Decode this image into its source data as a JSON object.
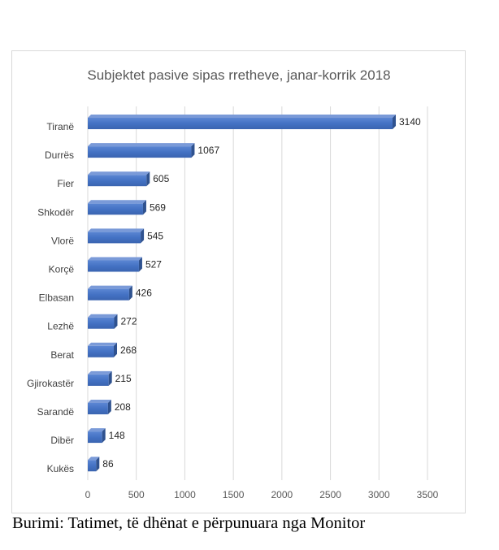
{
  "chart_data": {
    "type": "bar",
    "orientation": "horizontal",
    "title": "Subjektet pasive sipas rretheve, janar-korrik 2018",
    "categories": [
      "Tiranë",
      "Durrës",
      "Fier",
      "Shkodër",
      "Vlorë",
      "Korçë",
      "Elbasan",
      "Lezhë",
      "Berat",
      "Gjirokastër",
      "Sarandë",
      "Dibër",
      "Kukës"
    ],
    "values": [
      3140,
      1067,
      605,
      569,
      545,
      527,
      426,
      272,
      268,
      215,
      208,
      148,
      86
    ],
    "xlim": [
      0,
      3500
    ],
    "xticks": [
      0,
      500,
      1000,
      1500,
      2000,
      2500,
      3000,
      3500
    ],
    "grid": true,
    "bar_color": "#4472c4",
    "data_labels": true
  },
  "caption": "Burimi: Tatimet, të dhënat e përpunuara nga Monitor"
}
